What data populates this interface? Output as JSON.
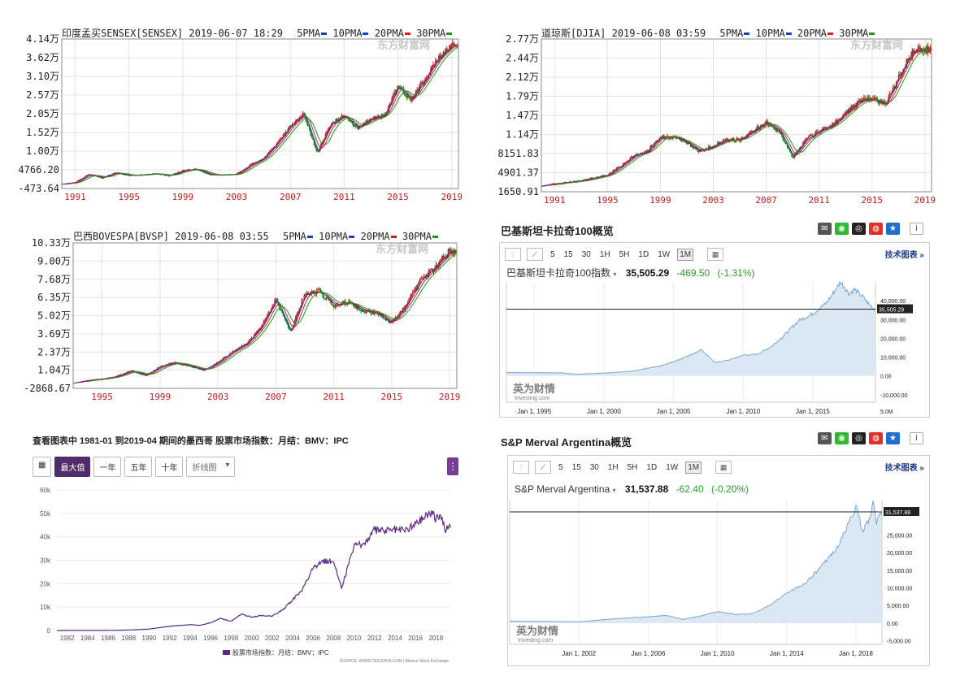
{
  "kline_charts": [
    {
      "id": "sensex",
      "title": "印度孟买SENSEX[SENSEX] 2019-06-07 18:29",
      "ma_labels": [
        "5PMA",
        "10PMA",
        "20PMA",
        "30PMA"
      ],
      "ma_colors": [
        "#1a3cc8",
        "#1a3cc8",
        "#d42020",
        "#1a9a1a"
      ],
      "watermark": "东方财富网",
      "y_ticks": [
        "4.14万",
        "3.62万",
        "3.10万",
        "2.57万",
        "2.05万",
        "1.52万",
        "1.00万",
        "4766.20",
        "-473.64"
      ],
      "x_ticks": [
        "1991",
        "1995",
        "1999",
        "2003",
        "2007",
        "2011",
        "2015",
        "2019"
      ],
      "chart_data": {
        "type": "line",
        "ylim": [
          -473.64,
          41400
        ],
        "xlim": [
          1990,
          2019.5
        ],
        "series": [
          {
            "values": [
              [
                1990,
                800
              ],
              [
                1991,
                1200
              ],
              [
                1992,
                3500
              ],
              [
                1993,
                2500
              ],
              [
                1994,
                4000
              ],
              [
                1995,
                3200
              ],
              [
                1996,
                3300
              ],
              [
                1997,
                3700
              ],
              [
                1998,
                3100
              ],
              [
                1999,
                4500
              ],
              [
                2000,
                5000
              ],
              [
                2001,
                3400
              ],
              [
                2002,
                3300
              ],
              [
                2003,
                3500
              ],
              [
                2004,
                6000
              ],
              [
                2005,
                8000
              ],
              [
                2006,
                12000
              ],
              [
                2007,
                17000
              ],
              [
                2008,
                20500
              ],
              [
                2009,
                9500
              ],
              [
                2010,
                17500
              ],
              [
                2011,
                20000
              ],
              [
                2012,
                16500
              ],
              [
                2013,
                19000
              ],
              [
                2014,
                20000
              ],
              [
                2015,
                28000
              ],
              [
                2016,
                24500
              ],
              [
                2017,
                30000
              ],
              [
                2018,
                36000
              ],
              [
                2019,
                39500
              ]
            ]
          }
        ]
      }
    },
    {
      "id": "djia",
      "title": "道琼斯[DJIA] 2019-06-08 03:59",
      "ma_labels": [
        "5PMA",
        "10PMA",
        "20PMA",
        "30PMA"
      ],
      "ma_colors": [
        "#1a3cc8",
        "#1a3cc8",
        "#d42020",
        "#1a9a1a"
      ],
      "watermark": "东方财富网",
      "y_ticks": [
        "2.77万",
        "2.44万",
        "2.12万",
        "1.79万",
        "1.47万",
        "1.14万",
        "8151.83",
        "4901.37",
        "1650.91"
      ],
      "x_ticks": [
        "1991",
        "1995",
        "1999",
        "2003",
        "2007",
        "2011",
        "2015",
        "2019"
      ],
      "chart_data": {
        "type": "line",
        "ylim": [
          1650.91,
          27700
        ],
        "xlim": [
          1990,
          2019.5
        ],
        "series": [
          {
            "values": [
              [
                1990,
                2600
              ],
              [
                1991,
                3000
              ],
              [
                1993,
                3500
              ],
              [
                1995,
                4500
              ],
              [
                1996,
                6000
              ],
              [
                1997,
                7800
              ],
              [
                1998,
                8500
              ],
              [
                1999,
                11000
              ],
              [
                2000,
                11000
              ],
              [
                2001,
                10000
              ],
              [
                2002,
                8500
              ],
              [
                2003,
                9500
              ],
              [
                2004,
                10500
              ],
              [
                2005,
                10500
              ],
              [
                2006,
                12000
              ],
              [
                2007,
                13500
              ],
              [
                2008,
                12000
              ],
              [
                2009,
                7500
              ],
              [
                2010,
                10500
              ],
              [
                2011,
                12000
              ],
              [
                2012,
                13000
              ],
              [
                2013,
                15000
              ],
              [
                2014,
                17000
              ],
              [
                2015,
                17500
              ],
              [
                2016,
                16500
              ],
              [
                2017,
                21000
              ],
              [
                2018,
                25500
              ],
              [
                2019,
                26000
              ]
            ]
          }
        ]
      }
    },
    {
      "id": "bovespa",
      "title": "巴西BOVESPA[BVSP] 2019-06-08 03:55",
      "ma_labels": [
        "5PMA",
        "10PMA",
        "20PMA",
        "30PMA"
      ],
      "ma_colors": [
        "#1a3cc8",
        "#1a3cc8",
        "#d42020",
        "#1a9a1a"
      ],
      "watermark": "东方财富网",
      "y_ticks": [
        "10.33万",
        "9.00万",
        "7.68万",
        "6.35万",
        "5.02万",
        "3.69万",
        "2.37万",
        "1.04万",
        "-2868.67"
      ],
      "x_ticks": [
        "1995",
        "1999",
        "2003",
        "2007",
        "2011",
        "2015",
        "2019"
      ],
      "chart_data": {
        "type": "line",
        "ylim": [
          -2868.67,
          103300
        ],
        "xlim": [
          1993,
          2019.5
        ],
        "series": [
          {
            "values": [
              [
                1993,
                1000
              ],
              [
                1994,
                3000
              ],
              [
                1995,
                4000
              ],
              [
                1996,
                6000
              ],
              [
                1997,
                10000
              ],
              [
                1998,
                6500
              ],
              [
                1999,
                13000
              ],
              [
                2000,
                16000
              ],
              [
                2001,
                13500
              ],
              [
                2002,
                10500
              ],
              [
                2003,
                16000
              ],
              [
                2004,
                24000
              ],
              [
                2005,
                30000
              ],
              [
                2006,
                42000
              ],
              [
                2007,
                62000
              ],
              [
                2008,
                38000
              ],
              [
                2009,
                66000
              ],
              [
                2010,
                68000
              ],
              [
                2011,
                58000
              ],
              [
                2012,
                60000
              ],
              [
                2013,
                54000
              ],
              [
                2014,
                52000
              ],
              [
                2015,
                45000
              ],
              [
                2016,
                58000
              ],
              [
                2017,
                76000
              ],
              [
                2018,
                86000
              ],
              [
                2019,
                97000
              ]
            ]
          }
        ]
      }
    }
  ],
  "investing_charts": [
    {
      "id": "kse100",
      "heading": "巴基斯坦卡拉奇100概览",
      "timeframes": [
        "5",
        "15",
        "30",
        "1H",
        "5H",
        "1D",
        "1W",
        "1M"
      ],
      "selected_timeframe": "1M",
      "tech_link": "技术图表 »",
      "quote_name": "巴基斯坦卡拉奇100指数",
      "quote_price": "35,505.29",
      "quote_change": "-469.50",
      "quote_pct": "(-1.31%)",
      "price_tag": "35,505.29",
      "watermark": "英为财情",
      "watermark_sub": "Investing.com",
      "y_ticks": [
        "40,000.00",
        "30,000.00",
        "20,000.00",
        "10,000.00",
        "0.00",
        "-10,000.00"
      ],
      "extra_tick": "5.0M",
      "x_ticks": [
        "Jan 1, 1995",
        "Jan 1, 2000",
        "Jan 1, 2005",
        "Jan 1, 2010",
        "Jan 1, 2015"
      ],
      "chart_data": {
        "type": "area",
        "ylim": [
          -14000,
          50000
        ],
        "xlim": [
          1993,
          2019.5
        ],
        "reference_value": 35505.29,
        "series": [
          {
            "values": [
              [
                1993,
                1800
              ],
              [
                1995,
                1700
              ],
              [
                1997,
                1600
              ],
              [
                1998,
                900
              ],
              [
                2000,
                1500
              ],
              [
                2002,
                2500
              ],
              [
                2004,
                5200
              ],
              [
                2005,
                7500
              ],
              [
                2006,
                10500
              ],
              [
                2007,
                14000
              ],
              [
                2008,
                7000
              ],
              [
                2009,
                8500
              ],
              [
                2010,
                11000
              ],
              [
                2011,
                11500
              ],
              [
                2012,
                15500
              ],
              [
                2013,
                22000
              ],
              [
                2014,
                29500
              ],
              [
                2015,
                33000
              ],
              [
                2016,
                39000
              ],
              [
                2017,
                50000
              ],
              [
                2017.6,
                44000
              ],
              [
                2018,
                46000
              ],
              [
                2018.6,
                42000
              ],
              [
                2019,
                38500
              ],
              [
                2019.4,
                35505
              ]
            ]
          }
        ]
      }
    },
    {
      "id": "merval",
      "heading": "S&P Merval Argentina概览",
      "timeframes": [
        "5",
        "15",
        "30",
        "1H",
        "5H",
        "1D",
        "1W",
        "1M"
      ],
      "selected_timeframe": "1M",
      "tech_link": "技术图表 »",
      "quote_name": "S&P Merval Argentina",
      "quote_price": "31,537.88",
      "quote_change": "-62.40",
      "quote_pct": "(-0.20%)",
      "price_tag": "31,537.88",
      "watermark": "英为财情",
      "watermark_sub": "Investing.com",
      "y_ticks": [
        "25,000.00",
        "20,000.00",
        "15,000.00",
        "10,000.00",
        "5,000.00",
        "0.00",
        "-5,000.00"
      ],
      "x_ticks": [
        "Jan 1, 2002",
        "Jan 1, 2006",
        "Jan 1, 2010",
        "Jan 1, 2014",
        "Jan 1, 2018"
      ],
      "chart_data": {
        "type": "area",
        "ylim": [
          -6000,
          35000
        ],
        "xlim": [
          1998,
          2019.5
        ],
        "reference_value": 31537.88,
        "series": [
          {
            "values": [
              [
                1998,
                600
              ],
              [
                2000,
                500
              ],
              [
                2002,
                400
              ],
              [
                2004,
                1200
              ],
              [
                2006,
                1800
              ],
              [
                2007,
                2200
              ],
              [
                2008,
                1100
              ],
              [
                2009,
                2000
              ],
              [
                2010,
                3300
              ],
              [
                2011,
                2500
              ],
              [
                2012,
                2600
              ],
              [
                2013,
                5000
              ],
              [
                2014,
                8500
              ],
              [
                2015,
                11000
              ],
              [
                2016,
                16000
              ],
              [
                2017,
                22000
              ],
              [
                2018,
                33000
              ],
              [
                2018.4,
                26000
              ],
              [
                2018.8,
                30000
              ],
              [
                2019,
                34000
              ],
              [
                2019.2,
                28000
              ],
              [
                2019.4,
                31537
              ]
            ]
          }
        ]
      }
    }
  ],
  "mexico": {
    "title": "查看图表中 1981-01 到2019-04 期间的墨西哥 股票市场指数：月结：BMV：IPC",
    "buttons": [
      "最大值",
      "一年",
      "五年",
      "十年"
    ],
    "selected_button": "最大值",
    "dropdown": "折线图",
    "menu_icon": "more-icon",
    "legend": "股票市场指数：月结：BMV：IPC",
    "source": "SOURCE: WWW.CEICDATA.COM | Mexico Stock Exchange",
    "y_ticks": [
      "60k",
      "50k",
      "40k",
      "30k",
      "20k",
      "10k",
      "0"
    ],
    "x_ticks": [
      "1982",
      "1984",
      "1986",
      "1988",
      "1990",
      "1992",
      "1994",
      "1996",
      "1998",
      "2000",
      "2002",
      "2004",
      "2006",
      "2008",
      "2010",
      "2012",
      "2014",
      "2016",
      "2018"
    ],
    "color": "#5b2a86",
    "chart_data": {
      "type": "line",
      "ylim": [
        0,
        60000
      ],
      "xlim": [
        1981,
        2019.4
      ],
      "series": [
        {
          "name": "股票市场指数：月结：BMV：IPC",
          "values": [
            [
              1981,
              10
            ],
            [
              1986,
              50
            ],
            [
              1988,
              200
            ],
            [
              1990,
              600
            ],
            [
              1992,
              1800
            ],
            [
              1994,
              2500
            ],
            [
              1995,
              2200
            ],
            [
              1996,
              3300
            ],
            [
              1997,
              5200
            ],
            [
              1998,
              3900
            ],
            [
              1999,
              7000
            ],
            [
              2000,
              5700
            ],
            [
              2001,
              6400
            ],
            [
              2002,
              6100
            ],
            [
              2003,
              8800
            ],
            [
              2004,
              12900
            ],
            [
              2005,
              17800
            ],
            [
              2006,
              26400
            ],
            [
              2007,
              29500
            ],
            [
              2008,
              30000
            ],
            [
              2008.8,
              18000
            ],
            [
              2009,
              21000
            ],
            [
              2010,
              36000
            ],
            [
              2011,
              37000
            ],
            [
              2012,
              43000
            ],
            [
              2013,
              42700
            ],
            [
              2014,
              43100
            ],
            [
              2015,
              42900
            ],
            [
              2016,
              45600
            ],
            [
              2017,
              49300
            ],
            [
              2017.6,
              51000
            ],
            [
              2018,
              47000
            ],
            [
              2018.5,
              49500
            ],
            [
              2018.9,
              41700
            ],
            [
              2019,
              43300
            ],
            [
              2019.3,
              44600
            ]
          ]
        }
      ]
    }
  }
}
